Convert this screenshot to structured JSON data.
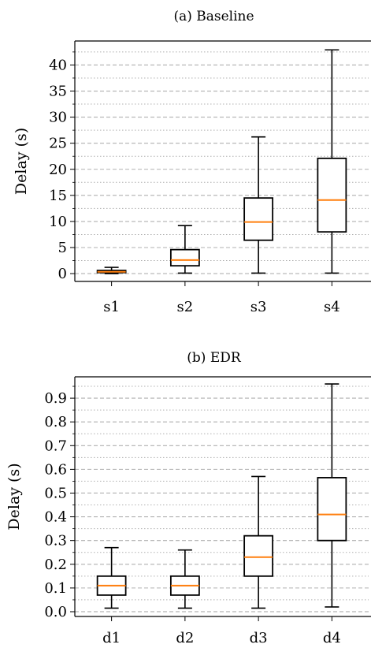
{
  "chart_data": [
    {
      "type": "box",
      "title": "(a) Baseline",
      "xlabel": "",
      "ylabel": "Delay (s)",
      "ylim": [
        -1.5,
        44.6
      ],
      "y_major_ticks": [
        0,
        5,
        10,
        15,
        20,
        25,
        30,
        35,
        40
      ],
      "y_minor_step": 2.5,
      "grid": true,
      "categories": [
        "s1",
        "s2",
        "s3",
        "s4"
      ],
      "boxes": [
        {
          "label": "s1",
          "whisker_low": 0.0,
          "q1": 0.2,
          "median": 0.35,
          "q3": 0.6,
          "whisker_high": 1.2
        },
        {
          "label": "s2",
          "whisker_low": 0.1,
          "q1": 1.5,
          "median": 2.6,
          "q3": 4.6,
          "whisker_high": 9.2
        },
        {
          "label": "s3",
          "whisker_low": 0.1,
          "q1": 6.4,
          "median": 9.9,
          "q3": 14.5,
          "whisker_high": 26.2
        },
        {
          "label": "s4",
          "whisker_low": 0.1,
          "q1": 8.0,
          "median": 14.1,
          "q3": 22.1,
          "whisker_high": 42.9
        }
      ]
    },
    {
      "type": "box",
      "title": "(b) EDR",
      "xlabel": "",
      "ylabel": "Delay (s)",
      "ylim": [
        -0.02,
        0.99
      ],
      "y_major_ticks": [
        0.0,
        0.1,
        0.2,
        0.3,
        0.4,
        0.5,
        0.6,
        0.7,
        0.8,
        0.9
      ],
      "y_tick_labels": [
        "0.0",
        "0.1",
        "0.2",
        "0.3",
        "0.4",
        "0.5",
        "0.6",
        "0.7",
        "0.8",
        "0.9"
      ],
      "y_minor_step": 0.05,
      "grid": true,
      "categories": [
        "d1",
        "d2",
        "d3",
        "d4"
      ],
      "boxes": [
        {
          "label": "d1",
          "whisker_low": 0.015,
          "q1": 0.07,
          "median": 0.11,
          "q3": 0.15,
          "whisker_high": 0.27
        },
        {
          "label": "d2",
          "whisker_low": 0.015,
          "q1": 0.07,
          "median": 0.11,
          "q3": 0.15,
          "whisker_high": 0.26
        },
        {
          "label": "d3",
          "whisker_low": 0.015,
          "q1": 0.15,
          "median": 0.23,
          "q3": 0.32,
          "whisker_high": 0.57
        },
        {
          "label": "d4",
          "whisker_low": 0.02,
          "q1": 0.3,
          "median": 0.41,
          "q3": 0.565,
          "whisker_high": 0.96
        }
      ]
    }
  ],
  "colors": {
    "median": "#ff7f0e",
    "box": "#000000",
    "major_grid": "#b0b0b0",
    "minor_grid": "#b0b0b0"
  }
}
